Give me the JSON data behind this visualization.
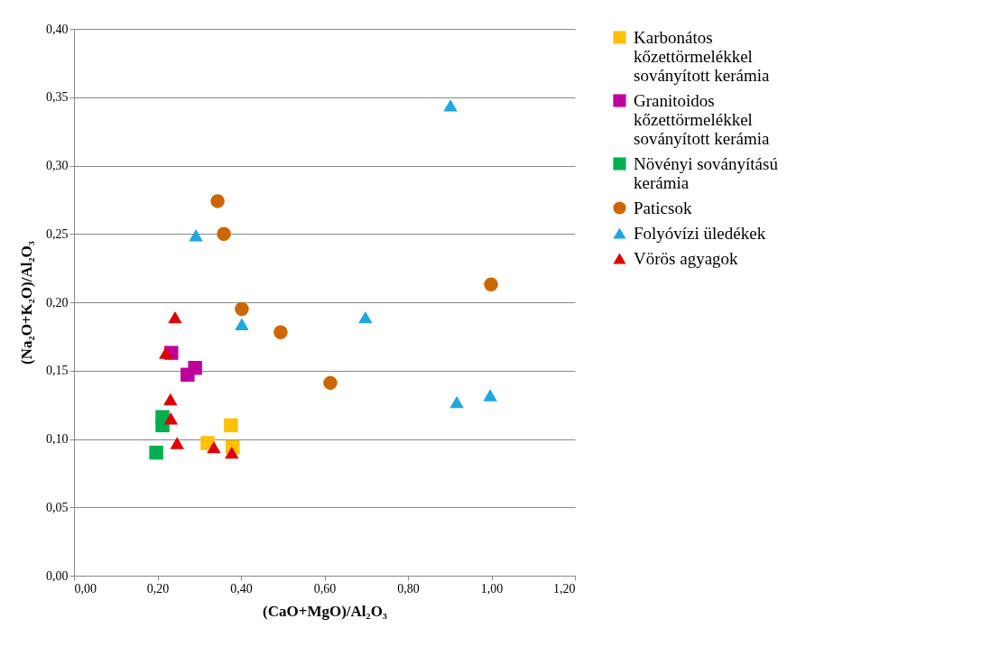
{
  "chart_data": {
    "type": "scatter",
    "xlabel": "(CaO+MgO)/Al₂O₃",
    "ylabel": "(Na₂O+K₂O)/Al₂O₃",
    "xlim": [
      0,
      1.2
    ],
    "xticks": [
      {
        "value": 0,
        "label": "0,00"
      },
      {
        "value": 0.2,
        "label": "0,20"
      },
      {
        "value": 0.4,
        "label": "0,40"
      },
      {
        "value": 0.6,
        "label": "0,60"
      },
      {
        "value": 0.8,
        "label": "0,80"
      },
      {
        "value": 1.0,
        "label": "1,00"
      },
      {
        "value": 1.2,
        "label": "1,20"
      }
    ],
    "ylim": [
      0,
      0.4
    ],
    "yticks": [
      {
        "value": 0,
        "label": "0,00"
      },
      {
        "value": 0.05,
        "label": "0,05"
      },
      {
        "value": 0.1,
        "label": "0,10"
      },
      {
        "value": 0.15,
        "label": "0,15"
      },
      {
        "value": 0.2,
        "label": "0,20"
      },
      {
        "value": 0.25,
        "label": "0,25"
      },
      {
        "value": 0.3,
        "label": "0,30"
      },
      {
        "value": 0.35,
        "label": "0,35"
      },
      {
        "value": 0.4,
        "label": "0,40"
      }
    ],
    "grid": "y",
    "legend": "right",
    "series": [
      {
        "name": "Karbonátos kőzettörmelékkel soványított kerámia",
        "color": "#ffc000",
        "marker": "square",
        "x": [
          0.32,
          0.376,
          0.38
        ],
        "values": [
          0.097,
          0.11,
          0.094
        ]
      },
      {
        "name": "Granitoidos kőzettörmelékkel soványított kerámia",
        "color": "#c0009c",
        "marker": "square",
        "x": [
          0.233,
          0.272,
          0.29
        ],
        "values": [
          0.163,
          0.147,
          0.152
        ]
      },
      {
        "name": "Növényi soványítású kerámia",
        "color": "#00b050",
        "marker": "square",
        "x": [
          0.212,
          0.212,
          0.197
        ],
        "values": [
          0.116,
          0.11,
          0.09
        ]
      },
      {
        "name": "Paticsok",
        "color": "#cc6600",
        "marker": "circle",
        "x": [
          0.344,
          0.359,
          0.402,
          0.495,
          0.614,
          0.999
        ],
        "values": [
          0.274,
          0.25,
          0.195,
          0.178,
          0.141,
          0.213
        ]
      },
      {
        "name": "Folyóvízi üledékek",
        "color": "#1ea7e1",
        "marker": "triangle",
        "x": [
          0.902,
          0.292,
          0.402,
          0.698,
          0.917,
          0.997
        ],
        "values": [
          0.344,
          0.249,
          0.184,
          0.189,
          0.127,
          0.132
        ]
      },
      {
        "name": "Vörös agyagok",
        "color": "#e00000",
        "marker": "triangle",
        "x": [
          0.242,
          0.22,
          0.231,
          0.232,
          0.247,
          0.335,
          0.378
        ],
        "values": [
          0.189,
          0.163,
          0.129,
          0.115,
          0.097,
          0.094,
          0.09
        ]
      }
    ]
  }
}
